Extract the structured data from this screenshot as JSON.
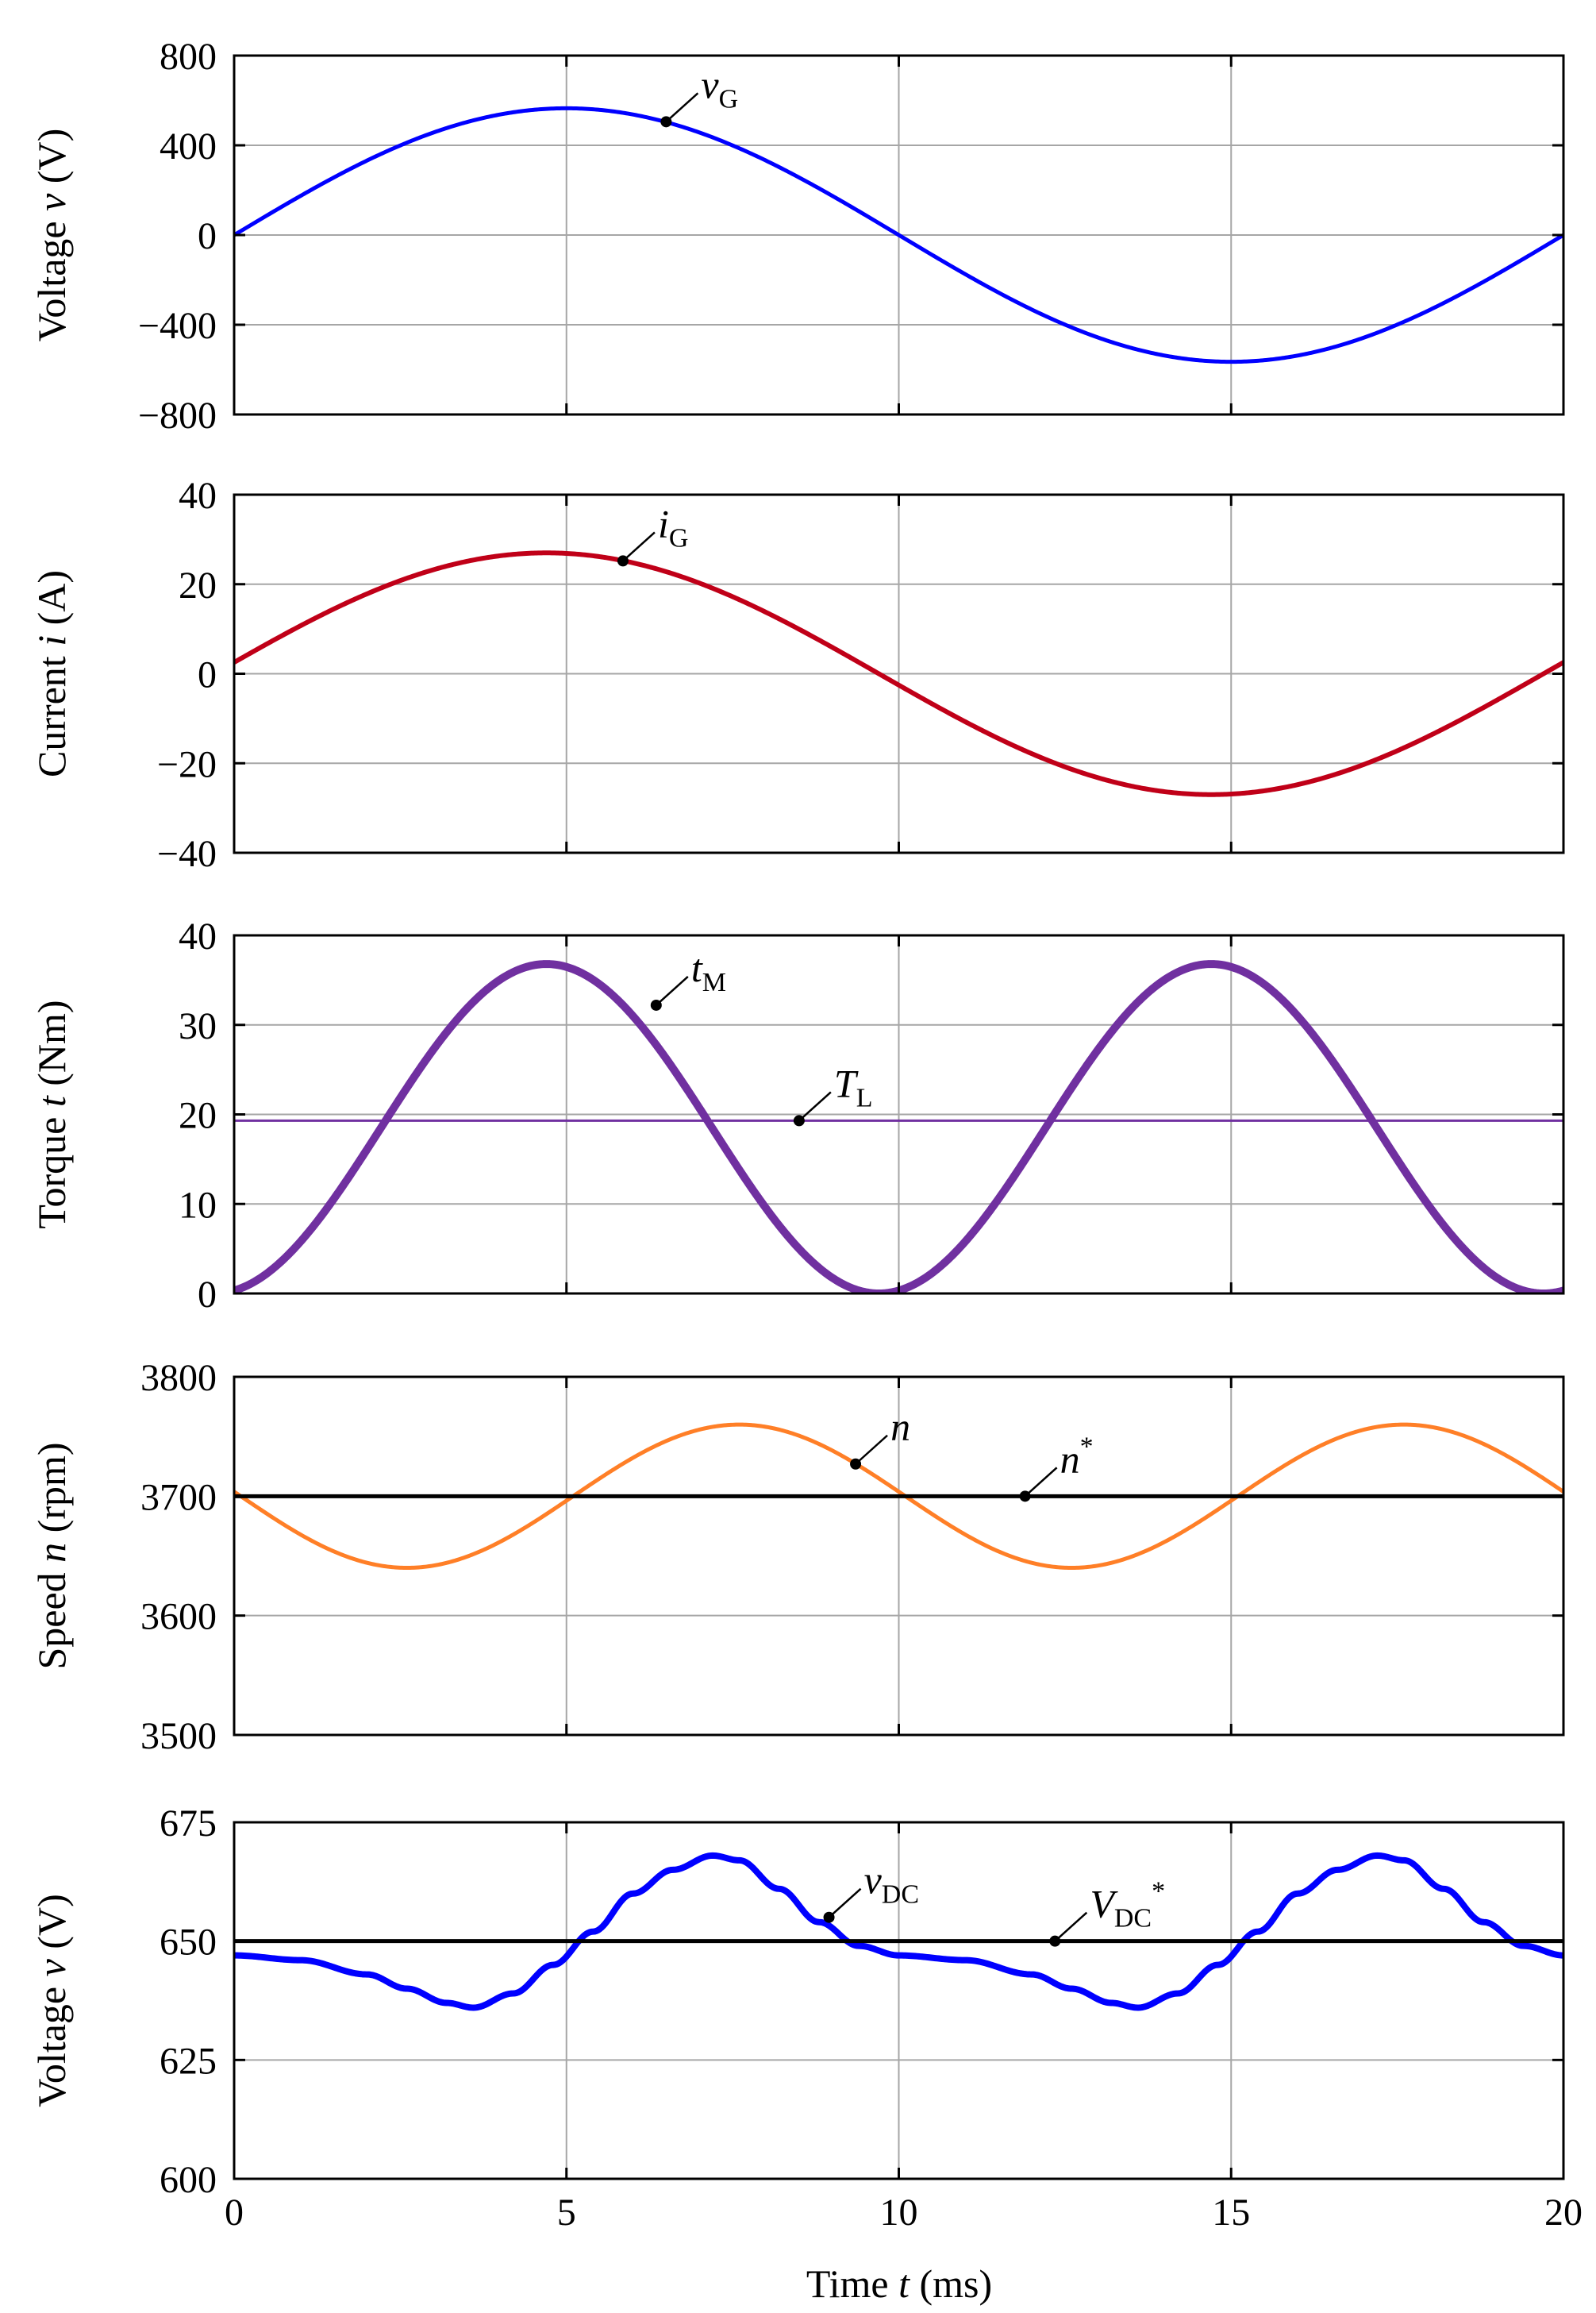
{
  "chart_data": [
    {
      "type": "line",
      "ylabel": "Voltage v (V)",
      "ylabel_parts": {
        "pre": "Voltage ",
        "var": "v",
        "post": " (V)"
      },
      "ylim": [
        -800,
        800
      ],
      "yticks": [
        -800,
        -400,
        0,
        400,
        800
      ],
      "ytick_labels": [
        "−800",
        "−400",
        "0",
        "400",
        "800"
      ],
      "xlim": [
        0,
        20
      ],
      "series": [
        {
          "name": "vG",
          "color": "#0000ff",
          "width": 5,
          "kind": "sine",
          "amplitude": 565,
          "period_ms": 20,
          "phase_ms": 0,
          "offset": 0
        }
      ],
      "annotations": [
        {
          "main": "v",
          "sub": "G",
          "sup": "",
          "x": 6.5,
          "y": 505
        }
      ]
    },
    {
      "type": "line",
      "ylabel": "Current i (A)",
      "ylabel_parts": {
        "pre": "Current ",
        "var": "i",
        "post": " (A)"
      },
      "ylim": [
        -40,
        40
      ],
      "yticks": [
        -40,
        -20,
        0,
        20,
        40
      ],
      "ytick_labels": [
        "−40",
        "−20",
        "0",
        "20",
        "40"
      ],
      "xlim": [
        0,
        20
      ],
      "series": [
        {
          "name": "iG",
          "color": "#c00018",
          "width": 6,
          "kind": "sine",
          "amplitude": 27,
          "period_ms": 20,
          "phase_ms": -0.3,
          "offset": 0
        }
      ],
      "annotations": [
        {
          "main": "i",
          "sub": "G",
          "sup": "",
          "x": 5.85,
          "y": 25.2
        }
      ]
    },
    {
      "type": "line",
      "ylabel": "Torque t (Nm)",
      "ylabel_parts": {
        "pre": "Torque ",
        "var": "t",
        "post": " (Nm)"
      },
      "ylim": [
        0,
        40
      ],
      "yticks": [
        0,
        10,
        20,
        30,
        40
      ],
      "ytick_labels": [
        "0",
        "10",
        "20",
        "30",
        "40"
      ],
      "xlim": [
        0,
        20
      ],
      "series": [
        {
          "name": "tM",
          "color": "#7030a0",
          "width": 10,
          "kind": "sin2",
          "amplitude": 36.8,
          "period_ms": 20,
          "phase_ms": -0.3,
          "offset": 0
        },
        {
          "name": "TL",
          "color": "#7030a0",
          "width": 3,
          "kind": "const",
          "value": 19.3
        }
      ],
      "annotations": [
        {
          "main": "t",
          "sub": "M",
          "sup": "",
          "x": 6.35,
          "y": 32.2
        },
        {
          "main": "T",
          "sub": "L",
          "sup": "",
          "x": 8.5,
          "y": 19.3
        }
      ]
    },
    {
      "type": "line",
      "ylabel": "Speed n (rpm)",
      "ylabel_parts": {
        "pre": "Speed ",
        "var": "n",
        "post": " (rpm)"
      },
      "ylim": [
        3500,
        3800
      ],
      "yticks": [
        3500,
        3600,
        3700,
        3800
      ],
      "ytick_labels": [
        "3500",
        "3600",
        "3700",
        "3800"
      ],
      "xlim": [
        0,
        20
      ],
      "series": [
        {
          "name": "n",
          "color": "#ff7f27",
          "width": 5,
          "kind": "sine",
          "amplitude": -60,
          "period_ms": 10,
          "phase_ms": 0.1,
          "offset": 3700
        },
        {
          "name": "n*",
          "color": "#000000",
          "width": 5,
          "kind": "const",
          "value": 3700
        }
      ],
      "annotations": [
        {
          "main": "n",
          "sub": "",
          "sup": "",
          "x": 9.35,
          "y": 3727
        },
        {
          "main": "n",
          "sub": "",
          "sup": "*",
          "x": 11.9,
          "y": 3700
        }
      ]
    },
    {
      "type": "line",
      "ylabel": "Voltage v (V)",
      "ylabel_parts": {
        "pre": "Voltage ",
        "var": "v",
        "post": " (V)"
      },
      "ylim": [
        600,
        675
      ],
      "yticks": [
        600,
        625,
        650,
        675
      ],
      "ytick_labels": [
        "600",
        "625",
        "650",
        "675"
      ],
      "xlim": [
        0,
        20
      ],
      "xticks": [
        0,
        5,
        10,
        15,
        20
      ],
      "xtick_labels": [
        "0",
        "5",
        "10",
        "15",
        "20"
      ],
      "xlabel": "Time t (ms)",
      "xlabel_parts": {
        "pre": "Time ",
        "var": "t",
        "post": " (ms)"
      },
      "series": [
        {
          "name": "vDC",
          "color": "#0000ff",
          "width": 8,
          "kind": "dc",
          "points_x": [
            0,
            1,
            2,
            2.6,
            3.2,
            3.6,
            4.2,
            4.8,
            5.4,
            6.0,
            6.6,
            7.2,
            7.6,
            8.2,
            8.8,
            9.4,
            10.0
          ],
          "points_y": [
            647,
            646,
            643,
            640,
            637,
            636,
            639,
            645,
            652,
            660,
            665,
            668,
            667,
            661,
            654,
            649,
            647
          ]
        },
        {
          "name": "VDC*",
          "color": "#000000",
          "width": 5,
          "kind": "const",
          "value": 650
        }
      ],
      "annotations": [
        {
          "main": "v",
          "sub": "DC",
          "sup": "",
          "x": 8.95,
          "y": 655
        },
        {
          "main": "V",
          "sub": "DC",
          "sup": "*",
          "x": 12.35,
          "y": 650
        }
      ]
    }
  ]
}
